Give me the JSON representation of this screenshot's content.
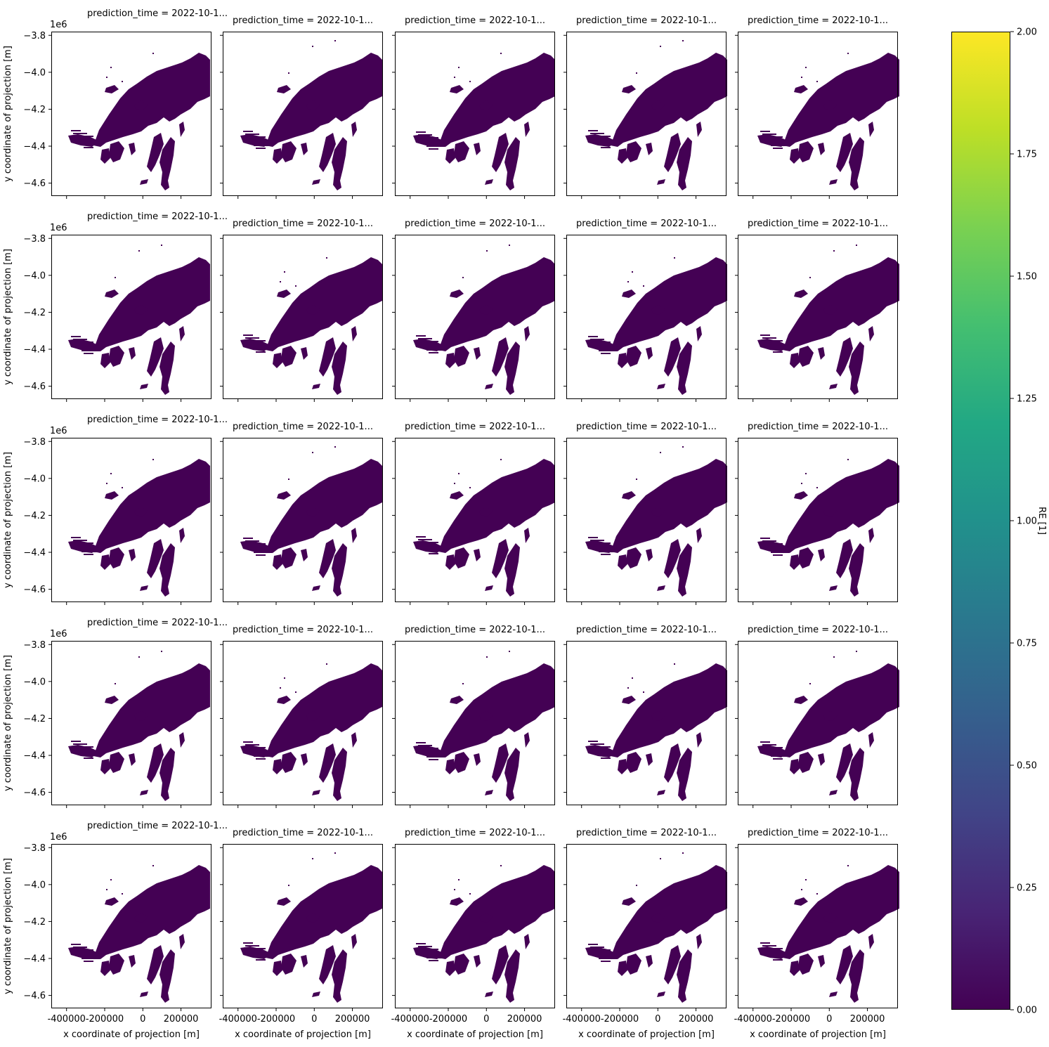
{
  "panel_title": "prediction_time = 2022-10-1...",
  "axis_labels": {
    "x": "x coordinate of projection [m]",
    "y": "y coordinate of projection [m]",
    "y_offset": "1e6"
  },
  "colorbar": {
    "label": "RE [1]",
    "colormap": "viridis",
    "range": [
      0.0,
      2.0
    ],
    "ticks": [
      "0.00",
      "0.25",
      "0.50",
      "0.75",
      "1.00",
      "1.25",
      "1.50",
      "1.75",
      "2.00"
    ]
  },
  "chart_data": {
    "type": "heatmap",
    "layout": "facet grid 5 rows x 5 columns, shared axes",
    "panel_count": 25,
    "facet": "prediction_time",
    "facet_label": "prediction_time = 2022-10-1...",
    "xlabel": "x coordinate of projection [m]",
    "ylabel": "y coordinate of projection [m]",
    "xlim": [
      -480000,
      360000
    ],
    "ylim": [
      -4670000,
      -3780000
    ],
    "x_ticks": [
      -400000,
      -200000,
      0,
      200000
    ],
    "x_tick_labels": [
      "-400000",
      "-200000",
      "0",
      "200000"
    ],
    "y_ticks": [
      -3.8,
      -4.0,
      -4.2,
      -4.4,
      -4.6
    ],
    "y_tick_labels": [
      "−3.8",
      "−4.0",
      "−4.2",
      "−4.4",
      "−4.6"
    ],
    "y_scale_factor": "1e6",
    "value_range": [
      0.0,
      2.0
    ],
    "observed_value": 0.0,
    "fill_color": "#440154",
    "colorbar_label": "RE [1]"
  }
}
